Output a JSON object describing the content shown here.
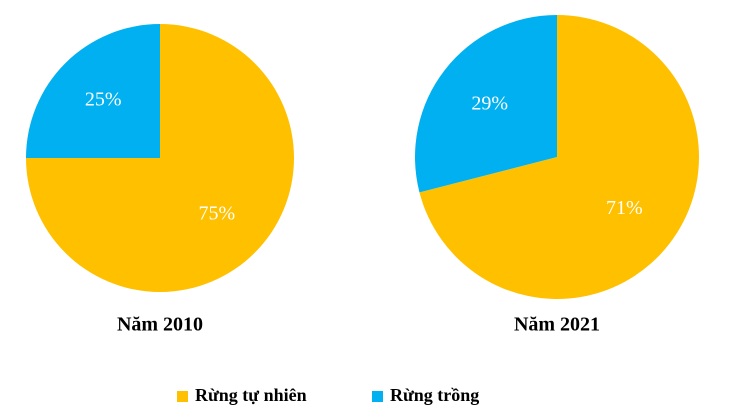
{
  "chart_data": [
    {
      "type": "pie",
      "title": "Năm 2010",
      "categories": [
        "Rừng tự nhiên",
        "Rừng trồng"
      ],
      "values": [
        75,
        25
      ],
      "value_labels": [
        "75%",
        "25%"
      ],
      "colors": [
        "#ffc000",
        "#00b0f0"
      ]
    },
    {
      "type": "pie",
      "title": "Năm 2021",
      "categories": [
        "Rừng tự nhiên",
        "Rừng trồng"
      ],
      "values": [
        71,
        29
      ],
      "value_labels": [
        "71%",
        "29%"
      ],
      "colors": [
        "#ffc000",
        "#00b0f0"
      ]
    }
  ]
}
